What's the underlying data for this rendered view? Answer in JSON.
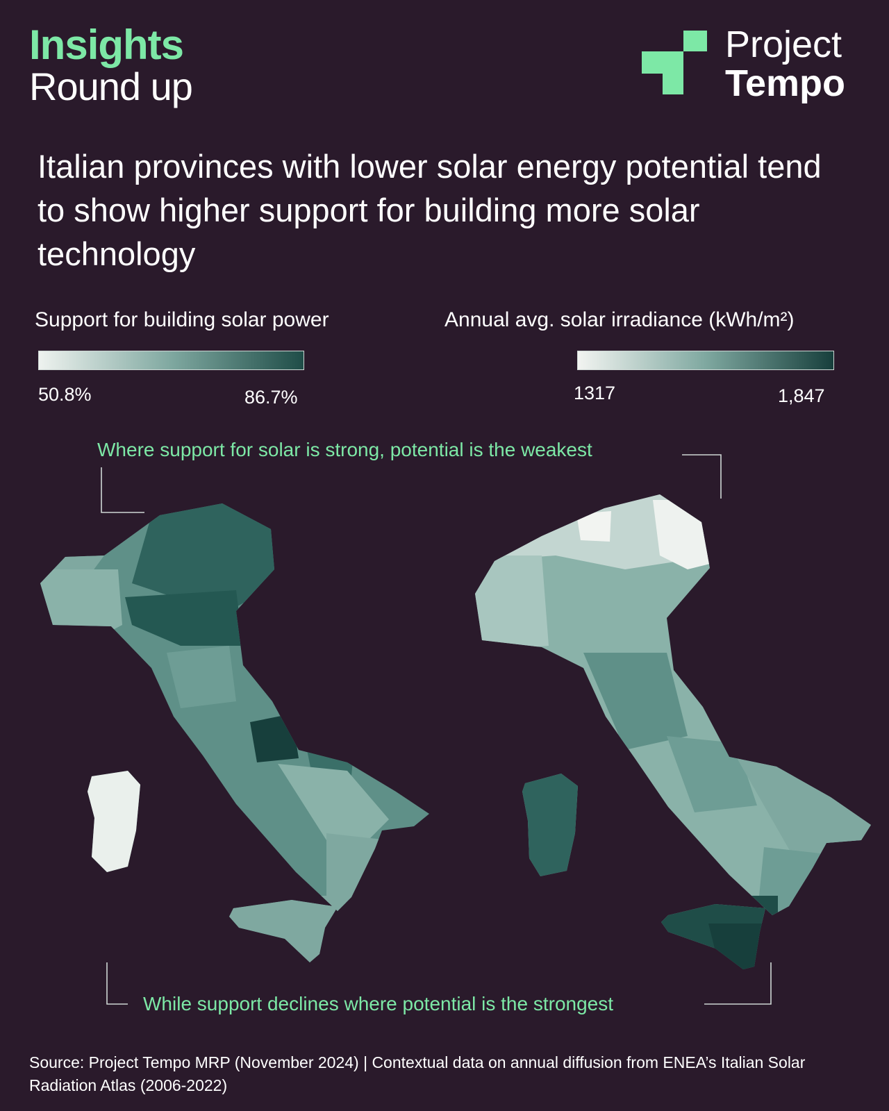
{
  "brand": {
    "insights": "Insights",
    "round_up": "Round up",
    "logo_line1": "Project",
    "logo_line2": "Tempo",
    "logo_icon": "project-tempo-logo-mark"
  },
  "headline": "Italian provinces with lower solar energy potential tend to show higher support for building more solar technology",
  "legend_support": {
    "title": "Support for building solar power",
    "min": "50.8%",
    "max": "86.7%",
    "colors": [
      "#eef2ef",
      "#7fa8a0",
      "#1f4d48"
    ]
  },
  "legend_irradiance": {
    "title": "Annual avg. solar irradiance (kWh/m²)",
    "min": "1317",
    "max": "1,847",
    "colors": [
      "#f2f4f1",
      "#7fa8a0",
      "#173f3c"
    ]
  },
  "annotations": {
    "top": "Where support for solar is strong, potential is the weakest",
    "bottom": "While support declines where potential is the strongest"
  },
  "source": "Source: Project Tempo MRP (November 2024) | Contextual data on annual diffusion from ENEA’s Italian Solar Radiation Atlas (2006-2022)",
  "colors": {
    "background": "#2a1a2b",
    "accent": "#7de8a6"
  }
}
